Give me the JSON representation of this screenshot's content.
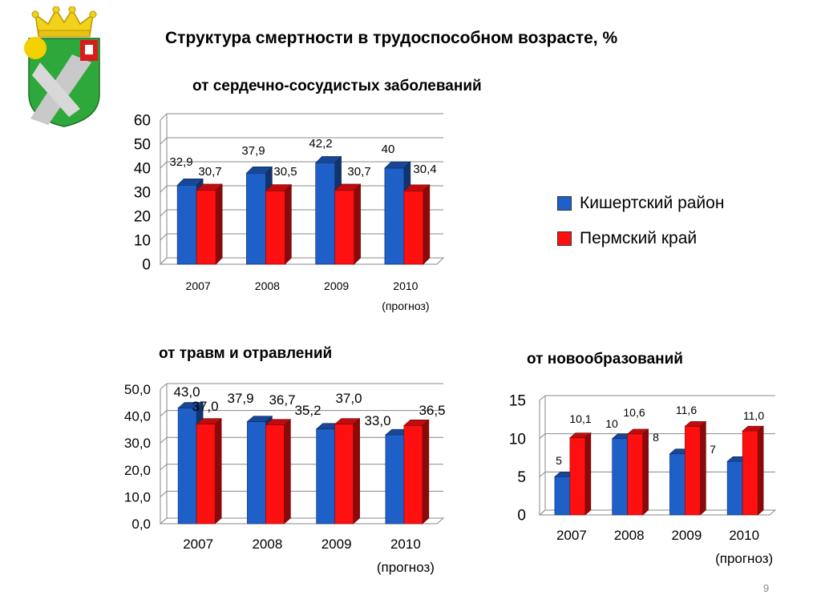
{
  "title": "Структура смертности в трудоспособном возрасте,  %",
  "legend": [
    {
      "name": "Кишертский район",
      "color": "#1f5fc8"
    },
    {
      "name": "Пермский край",
      "color": "#ff1010"
    }
  ],
  "page_number": "9",
  "emblem": {
    "icon": "coat-of-arms-icon"
  },
  "chart_data": [
    {
      "type": "bar",
      "title": "от сердечно-сосудистых заболеваний",
      "categories": [
        "2007",
        "2008",
        "2009",
        "2010"
      ],
      "category_notes": [
        "",
        "",
        "",
        "(прогноз)"
      ],
      "series": [
        {
          "name": "Кишертский район",
          "values": [
            32.9,
            37.9,
            42.2,
            40
          ],
          "labels": [
            "32,9",
            "37,9",
            "42,2",
            "40"
          ]
        },
        {
          "name": "Пермский край",
          "values": [
            30.7,
            30.5,
            30.7,
            30.4
          ],
          "labels": [
            "30,7",
            "30,5",
            "30,7",
            "30,4"
          ]
        }
      ],
      "ylim": [
        0,
        60
      ],
      "yticks": [
        0,
        10,
        20,
        30,
        40,
        50,
        60
      ],
      "ytick_labels": [
        "0",
        "10",
        "20",
        "30",
        "40",
        "50",
        "60"
      ],
      "grid": true
    },
    {
      "type": "bar",
      "title": "от травм и отравлений",
      "categories": [
        "2007",
        "2008",
        "2009",
        "2010"
      ],
      "category_notes": [
        "",
        "",
        "",
        "(прогноз)"
      ],
      "series": [
        {
          "name": "Кишертский район",
          "values": [
            43.0,
            37.9,
            35.2,
            33.0
          ],
          "labels": [
            "43,0",
            "37,9",
            "35,2",
            "33,0"
          ]
        },
        {
          "name": "Пермский край",
          "values": [
            37.0,
            36.7,
            37.0,
            36.5
          ],
          "labels": [
            "37,0",
            "36,7",
            "37,0",
            "36,5"
          ]
        }
      ],
      "ylim": [
        0,
        50
      ],
      "yticks": [
        0,
        10,
        20,
        30,
        40,
        50
      ],
      "ytick_labels": [
        "0,0",
        "10,0",
        "20,0",
        "30,0",
        "40,0",
        "50,0"
      ],
      "grid": true
    },
    {
      "type": "bar",
      "title": "от новообразований",
      "categories": [
        "2007",
        "2008",
        "2009",
        "2010"
      ],
      "category_notes": [
        "",
        "",
        "",
        "(прогноз)"
      ],
      "series": [
        {
          "name": "Кишертский район",
          "values": [
            5,
            10,
            8,
            7
          ],
          "labels": [
            "5",
            "10",
            "8",
            "7"
          ]
        },
        {
          "name": "Пермский край",
          "values": [
            10.1,
            10.6,
            11.6,
            11.0
          ],
          "labels": [
            "10,1",
            "10,6",
            "11,6",
            "11,0"
          ]
        }
      ],
      "ylim": [
        0,
        15
      ],
      "yticks": [
        0,
        5,
        10,
        15
      ],
      "ytick_labels": [
        "0",
        "5",
        "10",
        "15"
      ],
      "grid": true
    }
  ]
}
